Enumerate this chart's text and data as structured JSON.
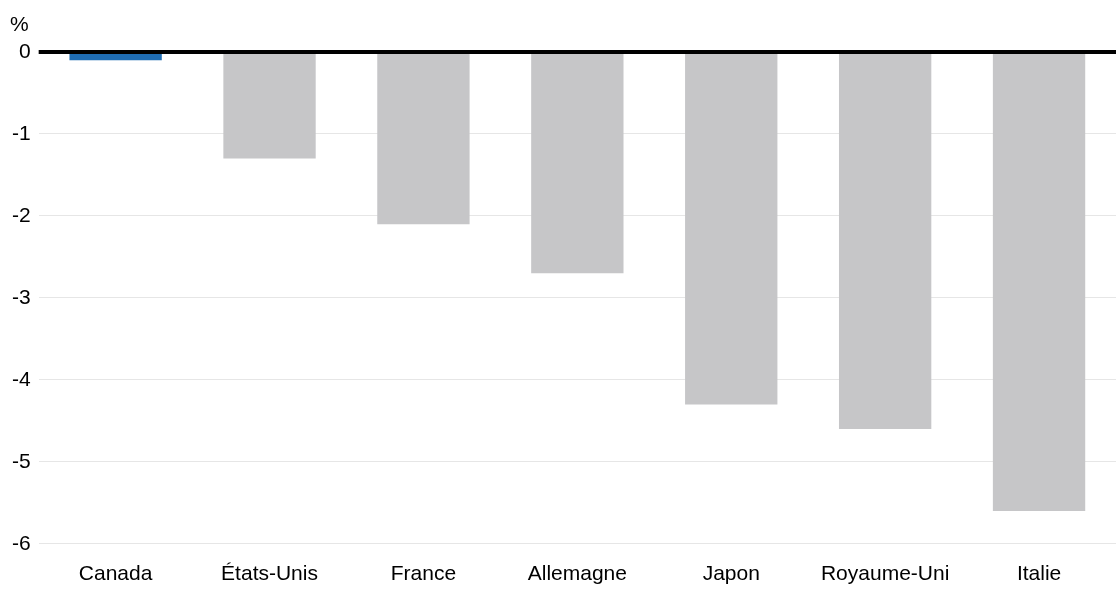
{
  "chart_data": {
    "type": "bar",
    "ylabel": "%",
    "categories": [
      "Canada",
      "États-Unis",
      "France",
      "Allemagne",
      "Japon",
      "Royaume-Uni",
      "Italie"
    ],
    "values": [
      -0.1,
      -1.3,
      -2.1,
      -2.7,
      -4.3,
      -4.6,
      -5.6
    ],
    "colors": [
      "#1f6db3",
      "#c6c6c8",
      "#c6c6c8",
      "#c6c6c8",
      "#c6c6c8",
      "#c6c6c8",
      "#c6c6c8"
    ],
    "ylim": [
      -6,
      0
    ],
    "yticks": [
      -6,
      -5,
      -4,
      -3,
      -2,
      -1,
      0
    ],
    "grid": "y",
    "legend": false,
    "ref_lines": [
      {
        "axis": "y",
        "value": 0,
        "color": "#000000"
      }
    ]
  }
}
